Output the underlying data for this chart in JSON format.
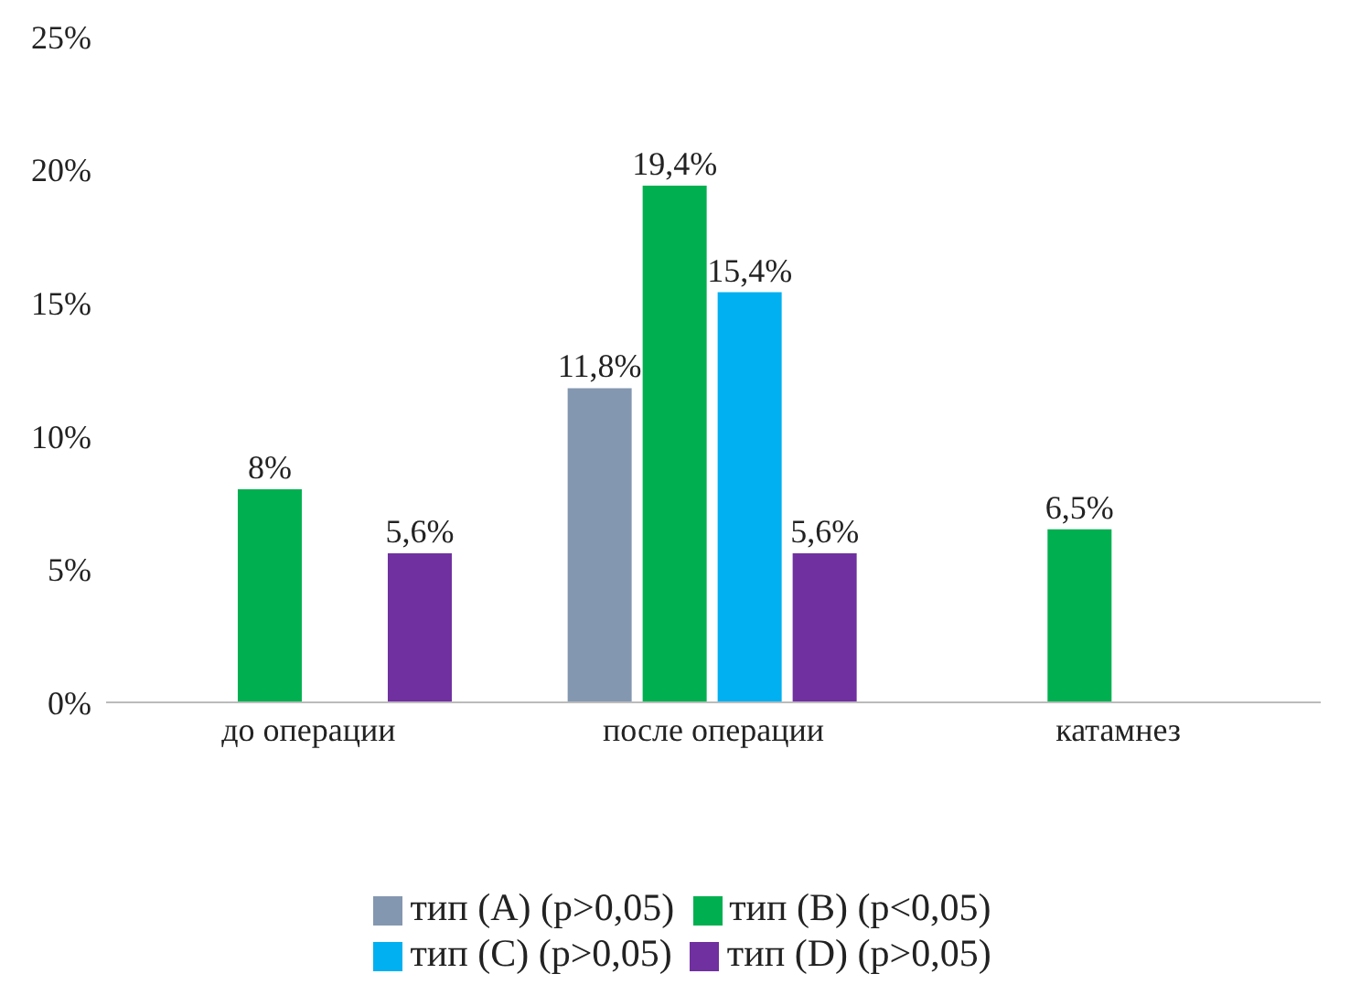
{
  "chart_data": {
    "type": "bar",
    "categories": [
      "до операции",
      "после операции",
      "катамнез"
    ],
    "series": [
      {
        "name": "тип (A) (p>0,05)",
        "color": "#8497b0",
        "values": [
          null,
          11.8,
          null
        ],
        "value_labels": [
          null,
          "11,8%",
          null
        ]
      },
      {
        "name": "тип (B) (p<0,05)",
        "color": "#00b050",
        "values": [
          8,
          19.4,
          6.5
        ],
        "value_labels": [
          "8%",
          "19,4%",
          "6,5%"
        ]
      },
      {
        "name": "тип (C) (p>0,05)",
        "color": "#00b0f0",
        "values": [
          null,
          15.4,
          null
        ],
        "value_labels": [
          null,
          "15,4%",
          null
        ]
      },
      {
        "name": "тип (D) (p>0,05)",
        "color": "#7030a0",
        "values": [
          5.6,
          5.6,
          null
        ],
        "value_labels": [
          "5,6%",
          "5,6%",
          null
        ]
      }
    ],
    "ylim": [
      0,
      25
    ],
    "yticks": [
      {
        "value": 0,
        "label": "0%"
      },
      {
        "value": 5,
        "label": "5%"
      },
      {
        "value": 10,
        "label": "10%"
      },
      {
        "value": 15,
        "label": "15%"
      },
      {
        "value": 20,
        "label": "20%"
      },
      {
        "value": 25,
        "label": "25%"
      }
    ],
    "grid": false,
    "legend": "bottom"
  }
}
